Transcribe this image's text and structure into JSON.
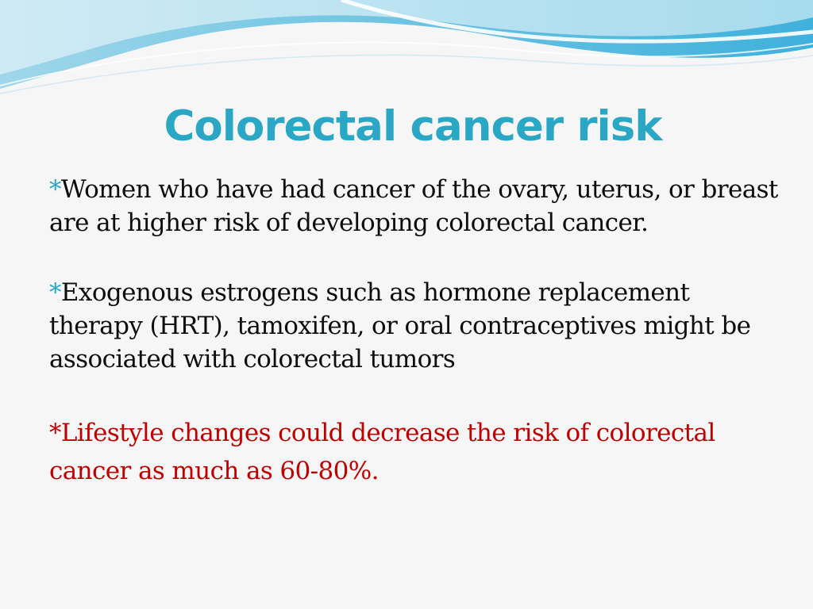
{
  "slide": {
    "title": "Colorectal cancer risk",
    "bullets": [
      {
        "marker": "*",
        "text": "Women who have had cancer of the ovary, uterus, or breast are at higher  risk of developing colorectal cancer."
      },
      {
        "marker": "*",
        "text": "Exogenous estrogens such as hormone replacement therapy (HRT), tamoxifen, or oral contraceptives might be associated with colorectal tumors"
      },
      {
        "marker": "*",
        "text": "Lifestyle changes could decrease the risk of colorectal cancer as much as 60-80%."
      }
    ]
  },
  "colors": {
    "accent": "#2aa7c4",
    "highlight": "#c00000",
    "text": "#0d0d0d",
    "background": "#f6f6f6"
  }
}
